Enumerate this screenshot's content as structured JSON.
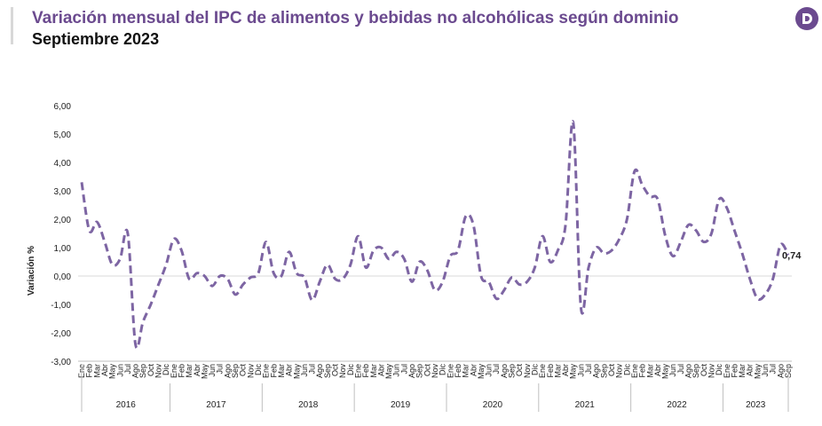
{
  "header": {
    "title": "Variación mensual del IPC de alimentos y bebidas no alcohólicas según dominio",
    "subtitle": "Septiembre 2023",
    "logo_icon": "logo-d-icon",
    "brand_color": "#6b4a8f"
  },
  "chart_data": {
    "type": "line",
    "title": "Variación mensual del IPC de alimentos y bebidas no alcohólicas según dominio",
    "subtitle": "Septiembre 2023",
    "ylabel": "Variación %",
    "xlabel": "",
    "ylim": [
      -3,
      6
    ],
    "yticks": [
      "6,00",
      "5,00",
      "4,00",
      "3,00",
      "2,00",
      "1,00",
      "0,00",
      "-1,00",
      "-2,00",
      "-3,00"
    ],
    "grid": false,
    "legend": "none",
    "line_color": "#7d65a3",
    "line_style": "dashed",
    "years": [
      "2016",
      "2017",
      "2018",
      "2019",
      "2020",
      "2021",
      "2022",
      "2023"
    ],
    "months_2016_2022": [
      "Ene",
      "Feb",
      "Mar",
      "Abr",
      "May",
      "Jun",
      "Jul",
      "Ago",
      "Sep",
      "Oct",
      "Nov",
      "Dic"
    ],
    "months_2023": [
      "Ene",
      "Feb",
      "Mar",
      "Abr",
      "May",
      "Jun",
      "Jul",
      "Ago",
      "Sep"
    ],
    "month_labels": [
      "Ene",
      "Feb",
      "Mar",
      "Abr",
      "May",
      "Jun",
      "Jul",
      "Ago",
      "Sep",
      "Oct",
      "Nov",
      "Dic",
      "Ene",
      "Feb",
      "Mar",
      "Abr",
      "May",
      "Jun",
      "Jul",
      "Ago",
      "Sep",
      "Oct",
      "Nov",
      "Dic",
      "Ene",
      "Feb",
      "Mar",
      "Abr",
      "May",
      "Jun",
      "Jul",
      "Ago",
      "Sep",
      "Oct",
      "Nov",
      "Dic",
      "Ene",
      "Feb",
      "Mar",
      "Abr",
      "May",
      "Jun",
      "Jul",
      "Ago",
      "Sep",
      "Oct",
      "Nov",
      "Dic",
      "Ene",
      "Feb",
      "Mar",
      "Abr",
      "May",
      "Jun",
      "Jul",
      "Ago",
      "Sep",
      "Oct",
      "Nov",
      "Dic",
      "Ene",
      "Feb",
      "Mar",
      "Abr",
      "May",
      "Jun",
      "Jul",
      "Ago",
      "Sep",
      "Oct",
      "Nov",
      "Dic",
      "Ene",
      "Feb",
      "Mar",
      "Abr",
      "May",
      "Jun",
      "Jul",
      "Ago",
      "Sep",
      "Oct",
      "Nov",
      "Dic",
      "Ene",
      "Feb",
      "Mar",
      "Abr",
      "May",
      "Jun",
      "Jul",
      "Ago",
      "Sep"
    ],
    "values": [
      3.3,
      1.6,
      1.9,
      1.2,
      0.4,
      0.6,
      1.5,
      -2.4,
      -1.6,
      -1.0,
      -0.3,
      0.4,
      1.3,
      0.9,
      -0.1,
      0.1,
      0.0,
      -0.35,
      0.0,
      -0.1,
      -0.65,
      -0.3,
      -0.05,
      0.1,
      1.2,
      0.1,
      0.0,
      0.85,
      0.1,
      -0.05,
      -0.85,
      -0.2,
      0.4,
      -0.1,
      -0.1,
      0.4,
      1.4,
      0.3,
      0.9,
      1.0,
      0.6,
      0.85,
      0.6,
      -0.2,
      0.5,
      0.2,
      -0.5,
      -0.2,
      0.7,
      0.9,
      2.1,
      1.8,
      0.0,
      -0.2,
      -0.8,
      -0.5,
      -0.05,
      -0.3,
      -0.2,
      0.3,
      1.4,
      0.5,
      0.9,
      1.8,
      5.4,
      -1.1,
      0.3,
      1.0,
      0.8,
      0.9,
      1.3,
      2.0,
      3.7,
      3.2,
      2.8,
      2.7,
      1.4,
      0.7,
      1.2,
      1.8,
      1.6,
      1.2,
      1.5,
      2.7,
      2.4,
      1.6,
      0.8,
      -0.1,
      -0.8,
      -0.65,
      -0.1,
      1.1,
      0.74
    ],
    "last_value_label": "0,74"
  }
}
